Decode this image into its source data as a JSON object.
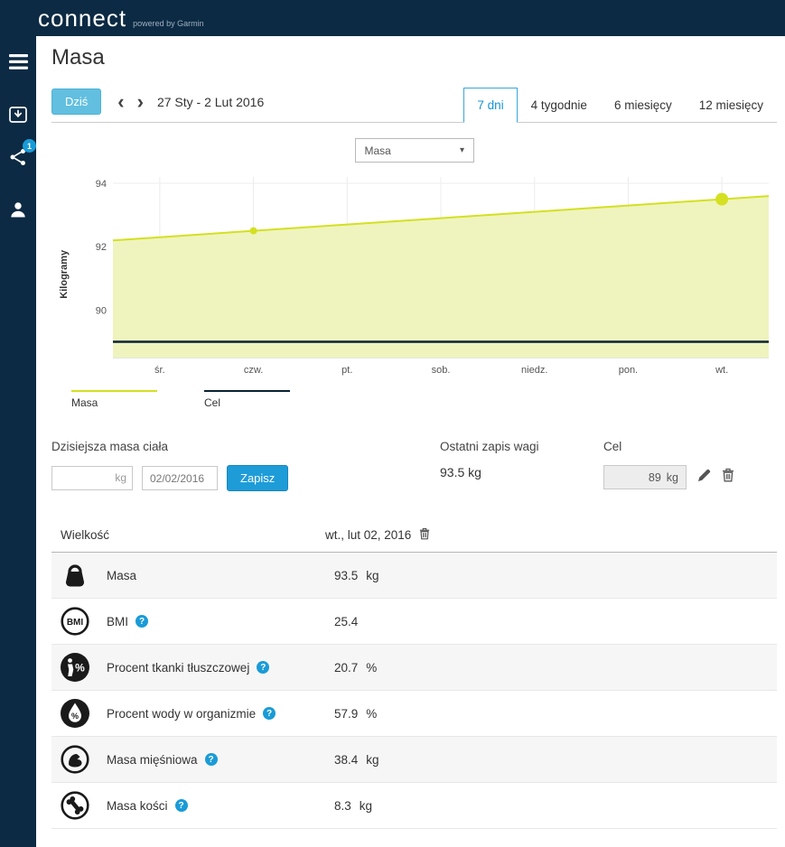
{
  "header": {
    "logo": "connect",
    "tagline": "powered by Garmin"
  },
  "sidebar": {
    "badge_count": "1"
  },
  "page": {
    "title": "Masa"
  },
  "toolbar": {
    "today_button": "Dziś",
    "prev_icon": "‹",
    "next_icon": "›",
    "date_range": "27 Sty - 2 Lut 2016",
    "tabs": [
      {
        "label": "7 dni",
        "active": true
      },
      {
        "label": "4 tygodnie",
        "active": false
      },
      {
        "label": "6 miesięcy",
        "active": false
      },
      {
        "label": "12 miesięcy",
        "active": false
      }
    ]
  },
  "metric_select": {
    "value": "Masa",
    "caret": "▾"
  },
  "chart_data": {
    "type": "area",
    "title": "Masa",
    "x": [
      "śr.",
      "czw.",
      "pt.",
      "sob.",
      "niedz.",
      "pon.",
      "wt."
    ],
    "ylabel": "Kilogramy",
    "yticks": [
      94,
      92,
      90
    ],
    "ylim": [
      88.5,
      94.2
    ],
    "grid": true,
    "legend_position": "bottom",
    "series": [
      {
        "name": "Masa",
        "kind": "area",
        "color": "#d4e021",
        "fill": "#eff4be",
        "values": [
          92.3,
          92.5,
          92.7,
          92.9,
          93.1,
          93.3,
          93.5
        ],
        "markers": [
          {
            "index": 1,
            "r": 4
          },
          {
            "index": 6,
            "r": 7
          }
        ]
      },
      {
        "name": "Cel",
        "kind": "line",
        "color": "#0a2234",
        "values": [
          89,
          89,
          89,
          89,
          89,
          89,
          89
        ],
        "markers": []
      }
    ]
  },
  "legend": [
    {
      "label": "Masa",
      "color": "#d4e021"
    },
    {
      "label": "Cel",
      "color": "#0a2234"
    }
  ],
  "entry": {
    "today_label": "Dzisiejsza masa ciała",
    "weight_unit": "kg",
    "weight_value": "",
    "date_value": "02/02/2016",
    "save_button": "Zapisz",
    "last_label": "Ostatni zapis wagi",
    "last_value": "93.5 kg",
    "goal_label": "Cel",
    "goal_value": "89",
    "goal_unit": "kg"
  },
  "table": {
    "col1": "Wielkość",
    "col2": "wt., lut 02, 2016",
    "help_symbol": "?",
    "rows": [
      {
        "icon": "weight-icon",
        "label": "Masa",
        "value": "93.5",
        "unit": "kg",
        "help": false
      },
      {
        "icon": "bmi-icon",
        "label": "BMI",
        "value": "25.4",
        "unit": "",
        "help": true
      },
      {
        "icon": "body-fat-icon",
        "label": "Procent tkanki tłuszczowej",
        "value": "20.7",
        "unit": "%",
        "help": true
      },
      {
        "icon": "water-icon",
        "label": "Procent wody w organizmie",
        "value": "57.9",
        "unit": "%",
        "help": true
      },
      {
        "icon": "muscle-icon",
        "label": "Masa mięśniowa",
        "value": "38.4",
        "unit": "kg",
        "help": true
      },
      {
        "icon": "bone-icon",
        "label": "Masa kości",
        "value": "8.3",
        "unit": "kg",
        "help": true
      }
    ]
  }
}
